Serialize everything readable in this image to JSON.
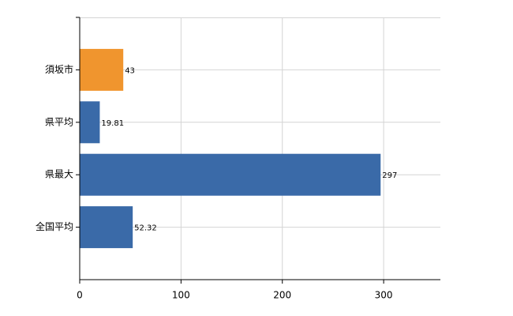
{
  "chart_data": {
    "type": "hbar",
    "categories": [
      "須坂市",
      "県平均",
      "県最大",
      "全国平均"
    ],
    "values": [
      43,
      19.81,
      297,
      52.32
    ],
    "colors": [
      "#f0952e",
      "#3a6aa8",
      "#3a6aa8",
      "#3a6aa8"
    ],
    "xlim": [
      0,
      356
    ],
    "xticks": [
      0,
      100,
      200,
      300
    ],
    "grid": true
  }
}
